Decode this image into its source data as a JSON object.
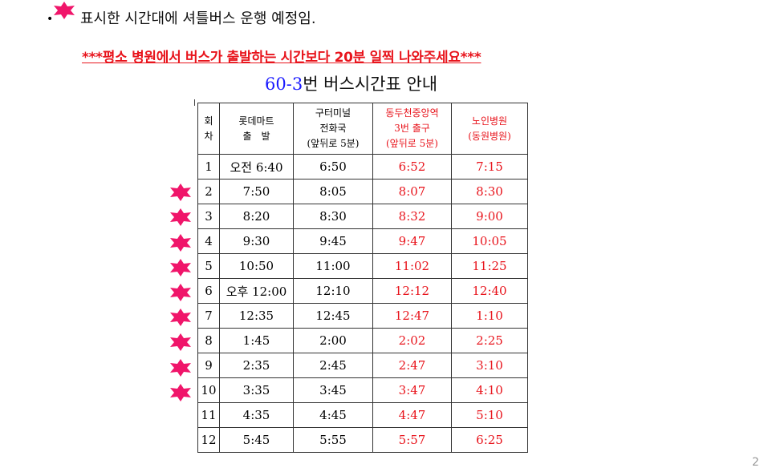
{
  "note": {
    "text": "표시한 시간대에 셔틀버스 운행 예정임.",
    "bullet": "•",
    "star_color": "#f0156a"
  },
  "warning": "***평소 병원에서 버스가 출발하는 시간보다 20분 일찍 나와주세요***",
  "title": {
    "number": "60-3",
    "rest": "번 버스시간표 안내"
  },
  "table": {
    "headers": [
      [
        "회",
        "차"
      ],
      [
        "롯데마트",
        "출　발"
      ],
      [
        "구터미널",
        "전화국",
        "(앞뒤로 5분)"
      ],
      [
        "동두천중앙역",
        "3번 출구",
        "(앞뒤로 5분)"
      ],
      [
        "노인병원",
        "(동원병원)"
      ]
    ],
    "rows": [
      [
        "1",
        "오전 6:40",
        "6:50",
        "6:52",
        "7:15"
      ],
      [
        "2",
        "7:50",
        "8:05",
        "8:07",
        "8:30"
      ],
      [
        "3",
        "8:20",
        "8:30",
        "8:32",
        "9:00"
      ],
      [
        "4",
        "9:30",
        "9:45",
        "9:47",
        "10:05"
      ],
      [
        "5",
        "10:50",
        "11:00",
        "11:02",
        "11:25"
      ],
      [
        "6",
        "오후 12:00",
        "12:10",
        "12:12",
        "12:40"
      ],
      [
        "7",
        "12:35",
        "12:45",
        "12:47",
        "1:10"
      ],
      [
        "8",
        "1:45",
        "2:00",
        "2:02",
        "2:25"
      ],
      [
        "9",
        "2:35",
        "2:45",
        "2:47",
        "3:10"
      ],
      [
        "10",
        "3:35",
        "3:45",
        "3:47",
        "4:10"
      ],
      [
        "11",
        "4:35",
        "4:45",
        "4:47",
        "5:10"
      ],
      [
        "12",
        "5:45",
        "5:55",
        "5:57",
        "6:25"
      ]
    ],
    "shuttle_rows": [
      "2",
      "3",
      "4",
      "5",
      "6",
      "7",
      "8",
      "9",
      "10"
    ]
  },
  "page_number": "2"
}
